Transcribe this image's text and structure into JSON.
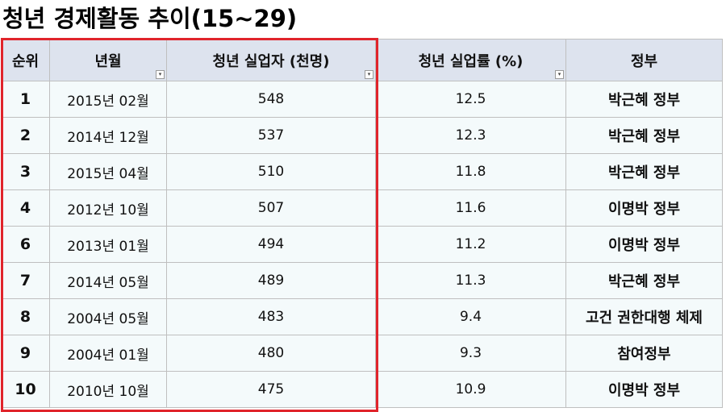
{
  "title": "청년 경제활동 추이(15~29)",
  "columns": [
    "순위",
    "년월",
    "청년 실업자 (천명)",
    "청년 실업률 (%)",
    "정부"
  ],
  "filter_icons": [
    "filter-sort-icon",
    "sort-desc-icon",
    "dropdown-icon"
  ],
  "rows": [
    {
      "rank": "1",
      "month": "2015년 02월",
      "unemployed": "548",
      "rate": "12.5",
      "gov": "박근혜 정부"
    },
    {
      "rank": "2",
      "month": "2014년 12월",
      "unemployed": "537",
      "rate": "12.3",
      "gov": "박근혜 정부"
    },
    {
      "rank": "3",
      "month": "2015년 04월",
      "unemployed": "510",
      "rate": "11.8",
      "gov": "박근혜 정부"
    },
    {
      "rank": "4",
      "month": "2012년 10월",
      "unemployed": "507",
      "rate": "11.6",
      "gov": "이명박 정부"
    },
    {
      "rank": "6",
      "month": "2013년 01월",
      "unemployed": "494",
      "rate": "11.2",
      "gov": "이명박 정부"
    },
    {
      "rank": "7",
      "month": "2014년 05월",
      "unemployed": "489",
      "rate": "11.3",
      "gov": "박근혜 정부"
    },
    {
      "rank": "8",
      "month": "2004년 05월",
      "unemployed": "483",
      "rate": "9.4",
      "gov": "고건 권한대행 체제"
    },
    {
      "rank": "9",
      "month": "2004년 01월",
      "unemployed": "480",
      "rate": "9.3",
      "gov": "참여정부"
    },
    {
      "rank": "10",
      "month": "2010년 10월",
      "unemployed": "475",
      "rate": "10.9",
      "gov": "이명박 정부"
    }
  ],
  "colors": {
    "header_bg": "#dde3ee",
    "cell_bg": "#f4fafb",
    "grid_line": "#bfbfbf",
    "highlight_border": "#e0242b"
  }
}
